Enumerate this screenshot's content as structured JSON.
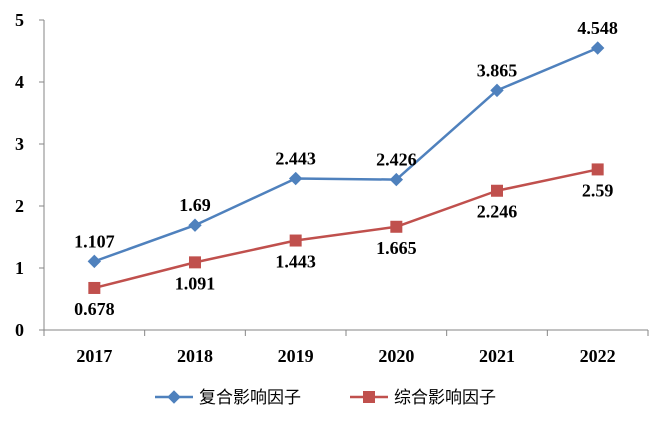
{
  "chart_data": {
    "type": "line",
    "categories": [
      "2017",
      "2018",
      "2019",
      "2020",
      "2021",
      "2022"
    ],
    "ylim": [
      0,
      5
    ],
    "yticks": [
      "0",
      "1",
      "2",
      "3",
      "4",
      "5"
    ],
    "grid": false,
    "legend_position": "bottom",
    "series": [
      {
        "name": "复合影响因子",
        "color": "#4f81bd",
        "marker": "diamond",
        "values": [
          1.107,
          1.69,
          2.443,
          2.426,
          3.865,
          4.548
        ],
        "labels": [
          "1.107",
          "1.69",
          "2.443",
          "2.426",
          "3.865",
          "4.548"
        ],
        "label_position": "above"
      },
      {
        "name": "综合影响因子",
        "color": "#c0504d",
        "marker": "square",
        "values": [
          0.678,
          1.091,
          1.443,
          1.665,
          2.246,
          2.59
        ],
        "labels": [
          "0.678",
          "1.091",
          "1.443",
          "1.665",
          "2.246",
          "2.59"
        ],
        "label_position": "below"
      }
    ]
  }
}
